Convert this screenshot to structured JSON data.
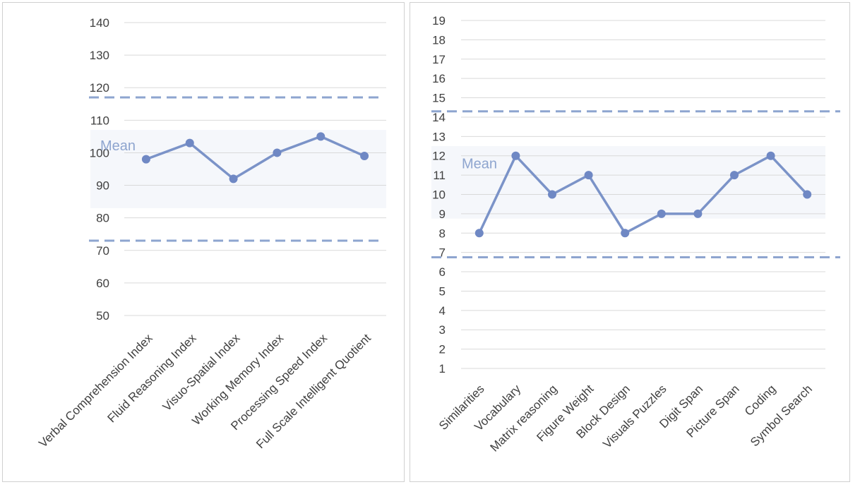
{
  "chart_data": [
    {
      "type": "line",
      "categories": [
        "Verbal Comprehension Index",
        "Fluid Reasoning Index",
        "Visuo-Spatial Index",
        "Working Memory Index",
        "Processing Speed Index",
        "Full Scale Intelligent Quotient"
      ],
      "values": [
        98,
        103,
        92,
        100,
        105,
        99
      ],
      "ylim": [
        50,
        140
      ],
      "yticks": [
        50,
        60,
        70,
        80,
        90,
        100,
        110,
        120,
        130,
        140
      ],
      "mean_label": "Mean",
      "mean_band": [
        83,
        107
      ],
      "dashed_lines": [
        117,
        73
      ],
      "grid": true,
      "colors": {
        "line": "#7b93c8",
        "marker": "#6f88c4",
        "dash": "#8ea5cf",
        "band": "#f5f7fb",
        "grid": "#d9d9d9",
        "mean_text": "#8ea5cf"
      }
    },
    {
      "type": "line",
      "categories": [
        "Similarities",
        "Vocabulary",
        "Matrix reasoning",
        "Figure Weight",
        "Block Design",
        "Visuals Puzzles",
        "Digit Span",
        "Picture Span",
        "Coding",
        "Symbol Search"
      ],
      "values": [
        8,
        12,
        10,
        11,
        8,
        9,
        9,
        11,
        12,
        10
      ],
      "ylim": [
        1,
        19
      ],
      "yticks": [
        1,
        2,
        3,
        4,
        5,
        6,
        7,
        8,
        9,
        10,
        11,
        12,
        13,
        14,
        15,
        16,
        17,
        18,
        19
      ],
      "mean_label": "Mean",
      "mean_band": [
        8.75,
        12.5
      ],
      "dashed_lines": [
        14.3,
        6.75
      ],
      "grid": true,
      "colors": {
        "line": "#7b93c8",
        "marker": "#6f88c4",
        "dash": "#8ea5cf",
        "band": "#f5f7fb",
        "grid": "#d9d9d9",
        "mean_text": "#8ea5cf"
      }
    }
  ]
}
